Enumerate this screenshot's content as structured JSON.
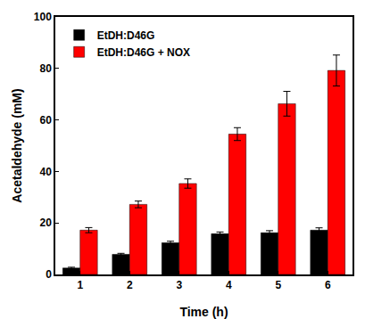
{
  "chart_data": {
    "type": "bar",
    "x_label": "Time (h)",
    "y_label": "Acetaldehyde (mM)",
    "categories": [
      "1",
      "2",
      "3",
      "4",
      "5",
      "6"
    ],
    "series": [
      {
        "name": "EtDH:D46G",
        "color": "#000000",
        "values": [
          2.5,
          7.8,
          12.3,
          15.8,
          16.2,
          17.2
        ],
        "errors": [
          0.3,
          0.4,
          0.6,
          0.7,
          0.8,
          0.9
        ]
      },
      {
        "name": "EtDH:D46G + NOX",
        "color": "#ff0000",
        "values": [
          17.2,
          27.2,
          35.3,
          54.5,
          66.3,
          79.2
        ],
        "errors": [
          1.0,
          1.3,
          1.8,
          2.5,
          4.8,
          6.0
        ]
      }
    ],
    "ylim": [
      0,
      100
    ],
    "yticks": [
      0,
      20,
      40,
      60,
      80,
      100
    ],
    "grid": false,
    "legend": "upper left"
  }
}
